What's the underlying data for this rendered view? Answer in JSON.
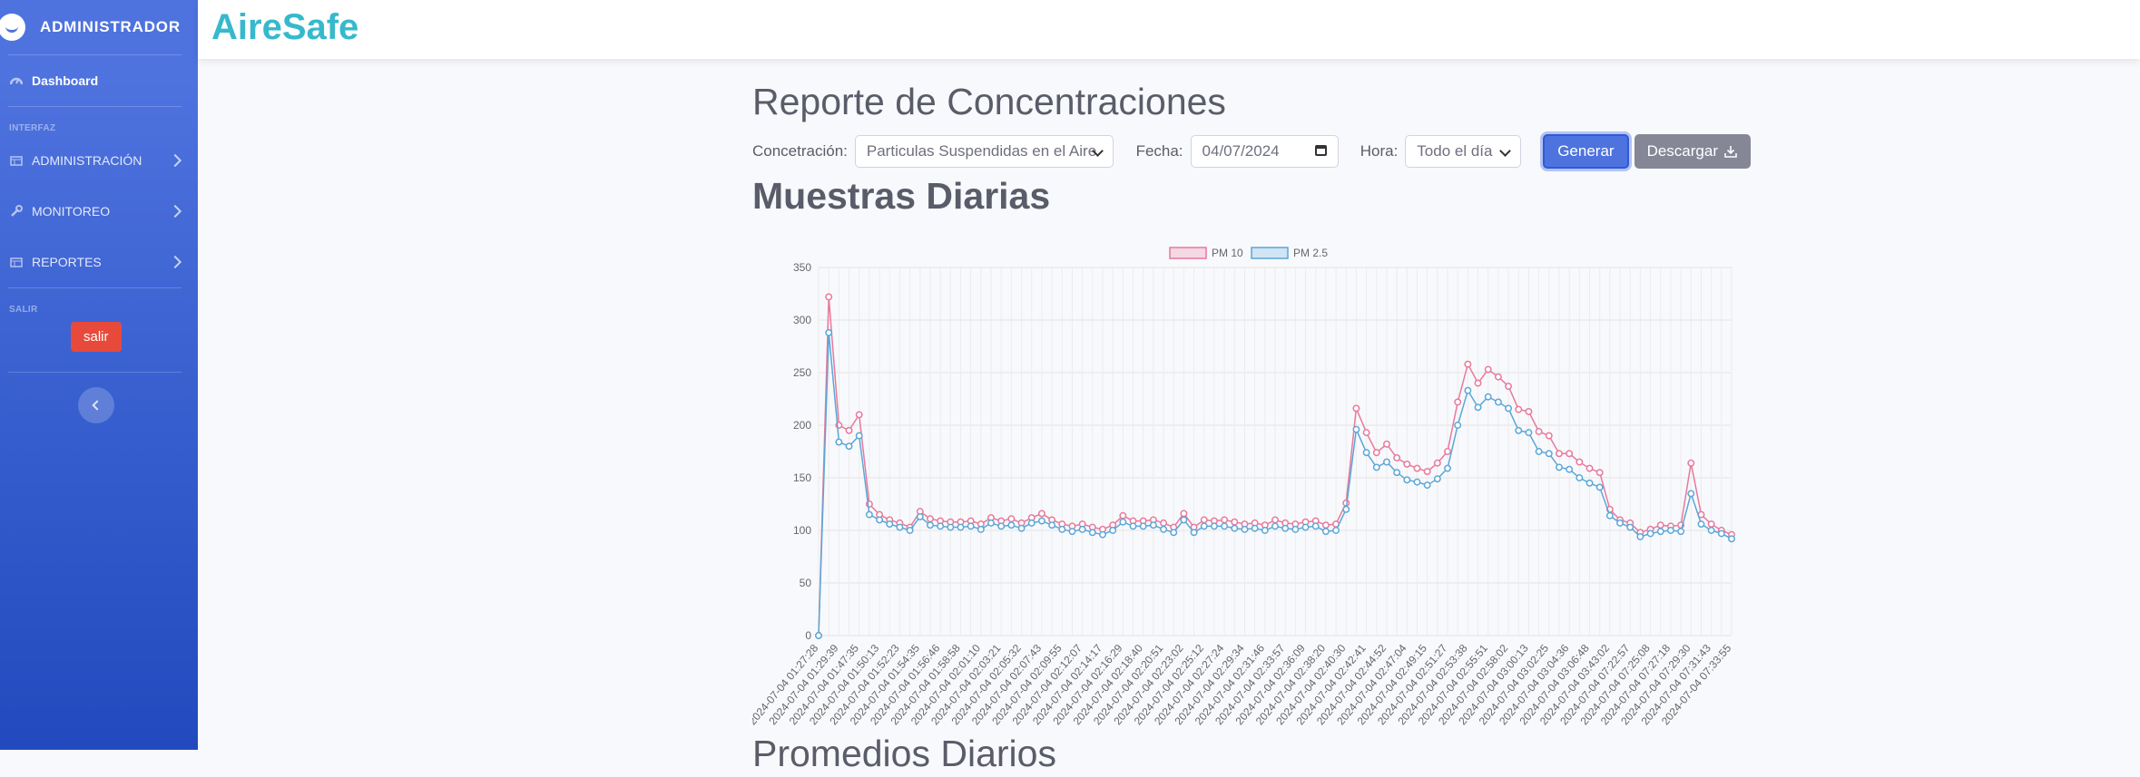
{
  "sidebar": {
    "brand": "ADMINISTRADOR",
    "dashboard": "Dashboard",
    "heading_interfaz": "INTERFAZ",
    "items": [
      {
        "label": "ADMINISTRACIÓN"
      },
      {
        "label": "MONITOREO"
      },
      {
        "label": "REPORTES"
      }
    ],
    "heading_salir": "SALIR",
    "logout": "salir"
  },
  "topbar": {
    "app_title": "AireSafe"
  },
  "main": {
    "page_title": "Reporte de Concentraciones",
    "concentration_label": "Concetración:",
    "concentration_value": "Particulas Suspendidas en el Aire",
    "date_label": "Fecha:",
    "date_value": "04/07/2024",
    "hour_label": "Hora:",
    "hour_value": "Todo el día",
    "generate_button": "Generar",
    "download_button": "Descargar",
    "section_title": "Muestras Diarias",
    "section_title_2": "Promedios Diarios"
  },
  "colors": {
    "pm10": "#e8799a",
    "pm25": "#5ba7d8",
    "accent": "#4e73df",
    "brand": "#36b9cc"
  },
  "chart_data": {
    "type": "line",
    "ylim": [
      0,
      350
    ],
    "yticks": [
      0,
      50,
      100,
      150,
      200,
      250,
      300,
      350
    ],
    "grid": true,
    "legend_position": "top-center",
    "x_tick_labels": [
      "2024-07-04 01:27:28",
      "2024-07-04 01:29:39",
      "2024-07-04 01:47:35",
      "2024-07-04 01:50:13",
      "2024-07-04 01:52:23",
      "2024-07-04 01:54:35",
      "2024-07-04 01:56:46",
      "2024-07-04 01:58:58",
      "2024-07-04 02:01:10",
      "2024-07-04 02:03:21",
      "2024-07-04 02:05:32",
      "2024-07-04 02:07:43",
      "2024-07-04 02:09:55",
      "2024-07-04 02:12:07",
      "2024-07-04 02:14:17",
      "2024-07-04 02:16:29",
      "2024-07-04 02:18:40",
      "2024-07-04 02:20:51",
      "2024-07-04 02:23:02",
      "2024-07-04 02:25:12",
      "2024-07-04 02:27:24",
      "2024-07-04 02:29:34",
      "2024-07-04 02:31:46",
      "2024-07-04 02:33:57",
      "2024-07-04 02:36:09",
      "2024-07-04 02:38:20",
      "2024-07-04 02:40:30",
      "2024-07-04 02:42:41",
      "2024-07-04 02:44:52",
      "2024-07-04 02:47:04",
      "2024-07-04 02:49:15",
      "2024-07-04 02:51:27",
      "2024-07-04 02:53:38",
      "2024-07-04 02:55:51",
      "2024-07-04 02:58:02",
      "2024-07-04 03:00:13",
      "2024-07-04 03:02:25",
      "2024-07-04 03:04:36",
      "2024-07-04 03:06:48",
      "2024-07-04 03:43:02",
      "2024-07-04 07:22:57",
      "2024-07-04 07:25:08",
      "2024-07-04 07:27:18",
      "2024-07-04 07:29:30",
      "2024-07-04 07:31:43",
      "2024-07-04 07:33:55"
    ],
    "series": [
      {
        "name": "PM 10",
        "values": [
          0,
          322,
          200,
          195,
          210,
          125,
          115,
          110,
          107,
          103,
          118,
          111,
          109,
          108,
          108,
          109,
          106,
          112,
          109,
          111,
          107,
          112,
          116,
          110,
          106,
          104,
          106,
          103,
          101,
          105,
          114,
          109,
          109,
          110,
          107,
          103,
          116,
          103,
          110,
          109,
          110,
          108,
          106,
          107,
          105,
          110,
          107,
          106,
          108,
          109,
          105,
          106,
          126,
          216,
          193,
          174,
          182,
          169,
          163,
          159,
          156,
          164,
          175,
          222,
          258,
          240,
          253,
          246,
          237,
          215,
          213,
          194,
          190,
          173,
          173,
          165,
          159,
          155,
          120,
          110,
          107,
          98,
          101,
          105,
          104,
          105,
          164,
          115,
          106,
          100,
          96
        ]
      },
      {
        "name": "PM 2.5",
        "values": [
          0,
          288,
          184,
          180,
          190,
          115,
          110,
          106,
          103,
          100,
          113,
          105,
          104,
          103,
          103,
          104,
          101,
          107,
          104,
          105,
          102,
          107,
          109,
          105,
          101,
          99,
          101,
          98,
          96,
          100,
          108,
          104,
          104,
          105,
          101,
          98,
          110,
          98,
          104,
          104,
          104,
          102,
          101,
          102,
          100,
          104,
          102,
          101,
          103,
          104,
          99,
          100,
          120,
          196,
          174,
          160,
          165,
          155,
          148,
          146,
          143,
          149,
          159,
          200,
          233,
          217,
          227,
          222,
          216,
          195,
          193,
          175,
          173,
          160,
          158,
          150,
          145,
          141,
          114,
          107,
          103,
          94,
          97,
          99,
          100,
          99,
          135,
          106,
          100,
          97,
          92
        ]
      }
    ]
  }
}
